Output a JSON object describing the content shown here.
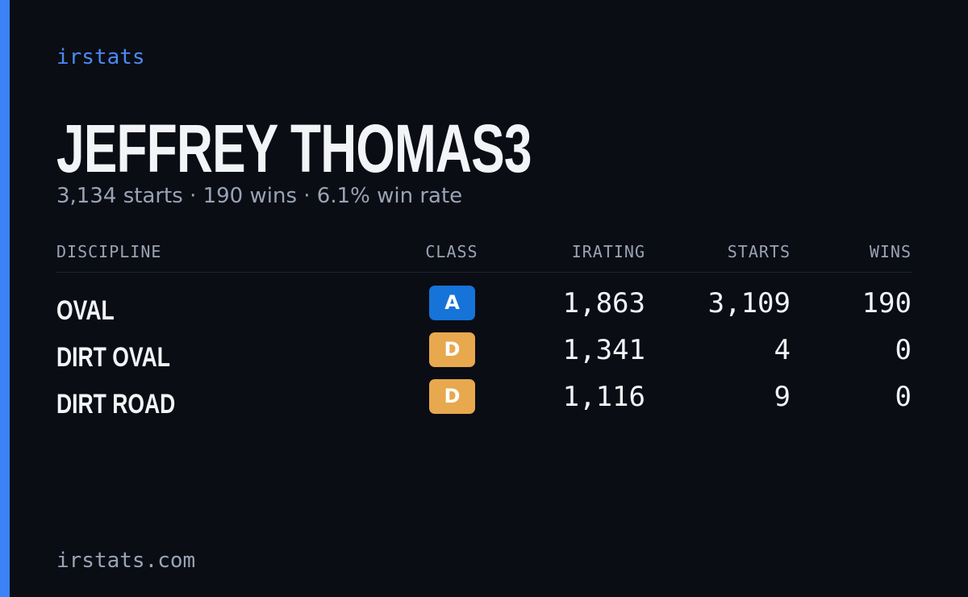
{
  "brand": "irstats",
  "header": {
    "name": "JEFFREY THOMAS3",
    "summary": "3,134 starts · 190 wins · 6.1% win rate"
  },
  "table": {
    "columns": [
      "DISCIPLINE",
      "CLASS",
      "IRATING",
      "STARTS",
      "WINS"
    ],
    "rows": [
      [
        "OVAL",
        "A",
        "1,863",
        "3,109",
        "190"
      ],
      [
        "DIRT OVAL",
        "D",
        "1,341",
        "4",
        "0"
      ],
      [
        "DIRT ROAD",
        "D",
        "1,116",
        "9",
        "0"
      ]
    ]
  },
  "footer": "irstats.com"
}
